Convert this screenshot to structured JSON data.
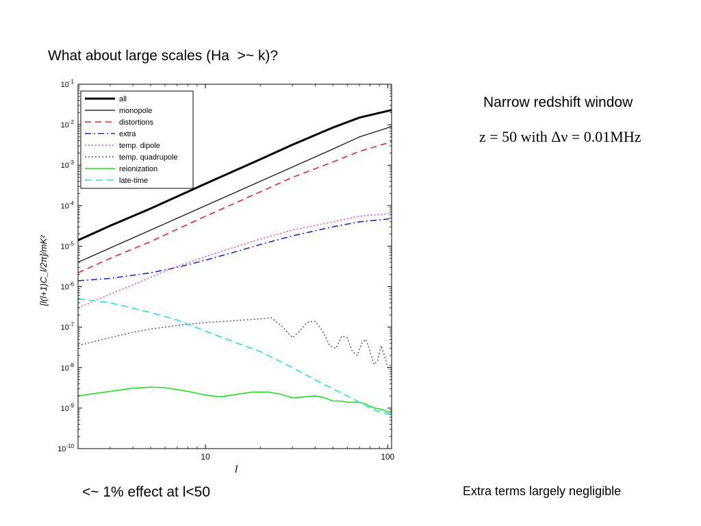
{
  "slide": {
    "title": "What about large scales (Ha  >~ k)?",
    "side_note": "Narrow redshift window",
    "formula": "z = 50 with Δν = 0.01MHz",
    "caption_left": "<~ 1% effect at l<50",
    "caption_right": "Extra terms largely negligible"
  },
  "chart_data": {
    "type": "line",
    "title": "",
    "xlabel": "l",
    "ylabel": "[l(l+1)C_l/2π]/mK²",
    "x_scale": "log",
    "y_scale": "log",
    "xlim": [
      2,
      105
    ],
    "ylim": [
      1e-10,
      0.1
    ],
    "x_ticks": [
      10,
      100
    ],
    "x_tick_labels": [
      "10",
      "100"
    ],
    "y_ticks": [
      1e-10,
      1e-09,
      1e-08,
      1e-07,
      1e-06,
      1e-05,
      0.0001,
      0.001,
      0.01,
      0.1
    ],
    "y_tick_exponents": [
      "-10",
      "-9",
      "-8",
      "-7",
      "-6",
      "-5",
      "-4",
      "-3",
      "-2",
      "-1"
    ],
    "y_tick_base": "10",
    "grid": false,
    "legend_position": "top-left",
    "series": [
      {
        "name": "all",
        "color": "#000000",
        "dash": "solid",
        "width": 3,
        "x": [
          2,
          3,
          5,
          10,
          20,
          30,
          50,
          70,
          105
        ],
        "y": [
          1.4e-05,
          3.2e-05,
          8.5e-05,
          0.00035,
          0.0014,
          0.0032,
          0.0085,
          0.015,
          0.023
        ]
      },
      {
        "name": "monopole",
        "color": "#000000",
        "dash": "solid",
        "width": 1.2,
        "x": [
          2,
          3,
          5,
          10,
          20,
          30,
          50,
          70,
          105
        ],
        "y": [
          4e-06,
          9e-06,
          2.5e-05,
          0.0001,
          0.0004,
          0.0009,
          0.0025,
          0.005,
          0.009
        ]
      },
      {
        "name": "distortions",
        "color": "#e8222a",
        "dash": "9 6",
        "width": 1.6,
        "x": [
          2,
          3,
          5,
          10,
          20,
          30,
          50,
          70,
          105
        ],
        "y": [
          2.2e-06,
          5e-06,
          1.3e-05,
          5.5e-05,
          0.00022,
          0.0005,
          0.0012,
          0.0022,
          0.0038
        ]
      },
      {
        "name": "extra",
        "color": "#1528c8",
        "dash": "9 4 2 4",
        "width": 1.6,
        "x": [
          2,
          3,
          5,
          7,
          10,
          15,
          20,
          30,
          50,
          70,
          105
        ],
        "y": [
          1.4e-06,
          1.6e-06,
          2.2e-06,
          3e-06,
          4.5e-06,
          7.5e-06,
          1.1e-05,
          1.8e-05,
          3e-05,
          4e-05,
          4.8e-05
        ]
      },
      {
        "name": "temp. dipole",
        "color": "#ee44ee",
        "dash": "2 3",
        "width": 1.6,
        "x": [
          2,
          3,
          4,
          5,
          7,
          10,
          15,
          20,
          30,
          50,
          70,
          105
        ],
        "y": [
          3e-07,
          6.5e-07,
          1.1e-06,
          1.7e-06,
          3.2e-06,
          5.5e-06,
          1e-05,
          1.5e-05,
          2.5e-05,
          4e-05,
          5.5e-05,
          6.5e-05
        ]
      },
      {
        "name": "temp. quadrupole",
        "color": "#555555",
        "dash": "2 3",
        "width": 1.5,
        "x": [
          2,
          2.5,
          3,
          4,
          5,
          7,
          10,
          13,
          16,
          20,
          23,
          26,
          30,
          33,
          36,
          40,
          44,
          48,
          52,
          56,
          60,
          64,
          68,
          72,
          76,
          80,
          84,
          88,
          92,
          96,
          100,
          105
        ],
        "y": [
          3.5e-08,
          4.5e-08,
          5.5e-08,
          7.5e-08,
          9e-08,
          1.1e-07,
          1.3e-07,
          1.4e-07,
          1.5e-07,
          1.6e-07,
          1.7e-07,
          1.1e-07,
          5.5e-08,
          8e-08,
          1.3e-07,
          1.4e-07,
          8e-08,
          3.5e-08,
          3e-08,
          6e-08,
          5.5e-08,
          2.5e-08,
          2e-08,
          4e-08,
          5e-08,
          2.5e-08,
          1.2e-08,
          1.5e-08,
          3.5e-08,
          2e-08,
          1e-08,
          1.2e-08
        ]
      },
      {
        "name": "reionization",
        "color": "#22dd22",
        "dash": "solid",
        "width": 1.6,
        "x": [
          2,
          3,
          4,
          5,
          6,
          8,
          10,
          12,
          15,
          18,
          22,
          26,
          30,
          35,
          40,
          45,
          50,
          55,
          60,
          65,
          70,
          75,
          80,
          85,
          90,
          95,
          100,
          105
        ],
        "y": [
          2e-09,
          2.6e-09,
          3.1e-09,
          3.3e-09,
          3.2e-09,
          2.6e-09,
          2.1e-09,
          1.9e-09,
          2.2e-09,
          2.5e-09,
          2.5e-09,
          2.2e-09,
          1.8e-09,
          1.9e-09,
          2e-09,
          1.8e-09,
          1.5e-09,
          1.5e-09,
          1.4e-09,
          1.4e-09,
          1.4e-09,
          1.3e-09,
          1.1e-09,
          1e-09,
          9.5e-10,
          9e-10,
          8e-10,
          8e-10
        ]
      },
      {
        "name": "late-time",
        "color": "#22ddee",
        "dash": "10 6",
        "width": 1.6,
        "x": [
          2,
          3,
          5,
          7,
          10,
          15,
          20,
          30,
          40,
          50,
          60,
          70,
          80,
          90,
          105
        ],
        "y": [
          5e-07,
          4e-07,
          2.3e-07,
          1.5e-07,
          8e-08,
          4e-08,
          2.5e-08,
          1e-08,
          5e-09,
          3e-09,
          2e-09,
          1.4e-09,
          1e-09,
          8e-10,
          7e-10
        ]
      }
    ]
  }
}
